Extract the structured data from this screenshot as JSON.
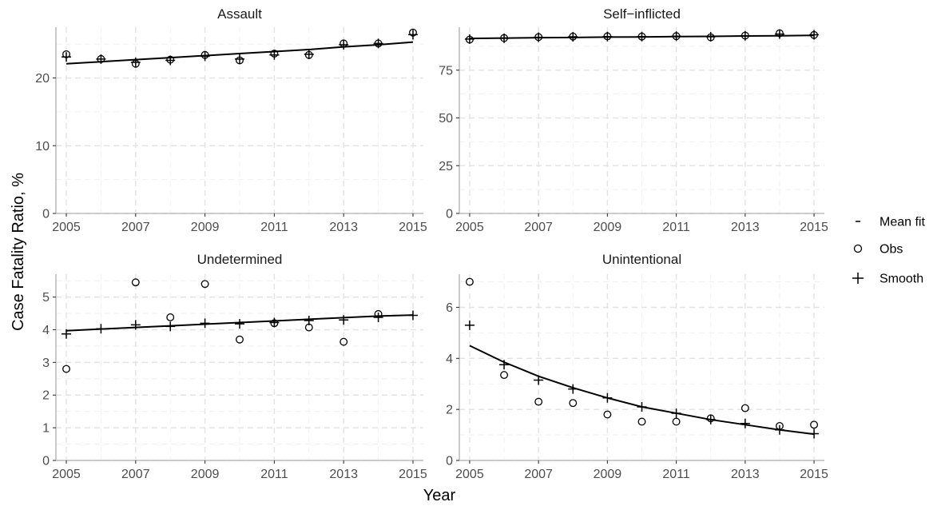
{
  "chart_data": {
    "type": "scatter",
    "xlabel": "Year",
    "ylabel": "Case Fatality Ratio, %",
    "grid": true,
    "legend_placement": "right",
    "legend": [
      {
        "key": "mean_fit",
        "label": "Mean fit",
        "glyph": "-"
      },
      {
        "key": "obs",
        "label": "Obs",
        "glyph": "o"
      },
      {
        "key": "smooth",
        "label": "Smooth",
        "glyph": "+"
      }
    ],
    "panels": [
      {
        "title": "Assault",
        "xlim": [
          2004.7,
          2015.3
        ],
        "ylim": [
          0,
          27.5
        ],
        "x_ticks": [
          2005,
          2007,
          2009,
          2011,
          2013,
          2015
        ],
        "y_ticks": [
          0,
          10,
          20
        ],
        "years": [
          2005,
          2006,
          2007,
          2008,
          2009,
          2010,
          2011,
          2012,
          2013,
          2014,
          2015
        ],
        "obs": [
          23.5,
          22.8,
          22.1,
          22.7,
          23.4,
          22.6,
          23.6,
          23.4,
          25.1,
          25.1,
          26.7
        ],
        "smooth": [
          23.1,
          22.8,
          22.3,
          22.6,
          23.2,
          22.8,
          23.4,
          23.5,
          24.9,
          25.1,
          26.4
        ],
        "mean_fit": [
          22.1,
          22.4,
          22.7,
          23.0,
          23.3,
          23.6,
          23.9,
          24.2,
          24.6,
          24.9,
          25.3
        ]
      },
      {
        "title": "Self−inflicted",
        "xlim": [
          2004.7,
          2015.3
        ],
        "ylim": [
          0,
          97.5
        ],
        "x_ticks": [
          2005,
          2007,
          2009,
          2011,
          2013,
          2015
        ],
        "y_ticks": [
          0,
          25,
          50,
          75
        ],
        "years": [
          2005,
          2006,
          2007,
          2008,
          2009,
          2010,
          2011,
          2012,
          2013,
          2014,
          2015
        ],
        "obs": [
          91.0,
          91.8,
          92.3,
          92.6,
          92.7,
          92.6,
          92.8,
          92.2,
          93.1,
          94.3,
          93.4
        ],
        "smooth": [
          91.3,
          91.7,
          92.2,
          92.5,
          92.6,
          92.6,
          92.8,
          92.5,
          93.0,
          93.9,
          93.5
        ],
        "mean_fit": [
          91.6,
          91.8,
          92.0,
          92.1,
          92.3,
          92.4,
          92.6,
          92.7,
          92.9,
          93.0,
          93.2
        ]
      },
      {
        "title": "Undetermined",
        "xlim": [
          2004.7,
          2015.3
        ],
        "ylim": [
          0,
          5.7
        ],
        "x_ticks": [
          2005,
          2007,
          2009,
          2011,
          2013,
          2015
        ],
        "y_ticks": [
          0,
          1,
          2,
          3,
          4,
          5
        ],
        "years": [
          2005,
          2006,
          2007,
          2008,
          2009,
          2010,
          2011,
          2012,
          2013,
          2014,
          2015
        ],
        "obs": [
          2.8,
          null,
          5.45,
          4.38,
          5.4,
          3.7,
          4.2,
          4.07,
          3.63,
          4.48,
          null
        ],
        "smooth": [
          3.87,
          4.03,
          4.15,
          4.1,
          4.2,
          4.18,
          4.22,
          4.28,
          4.3,
          4.38,
          4.44
        ],
        "mean_fit": [
          3.97,
          4.02,
          4.07,
          4.12,
          4.17,
          4.22,
          4.27,
          4.32,
          4.37,
          4.42,
          4.45
        ]
      },
      {
        "title": "Unintentional",
        "xlim": [
          2004.7,
          2015.3
        ],
        "ylim": [
          0,
          7.3
        ],
        "x_ticks": [
          2005,
          2007,
          2009,
          2011,
          2013,
          2015
        ],
        "y_ticks": [
          0,
          2,
          4,
          6
        ],
        "years": [
          2005,
          2006,
          2007,
          2008,
          2009,
          2010,
          2011,
          2012,
          2013,
          2014,
          2015
        ],
        "obs": [
          7.0,
          3.35,
          2.3,
          2.25,
          1.8,
          1.52,
          1.52,
          1.65,
          2.05,
          1.35,
          1.4
        ],
        "smooth": [
          5.3,
          3.75,
          3.15,
          2.8,
          2.45,
          2.1,
          1.85,
          1.6,
          1.45,
          1.2,
          1.05
        ],
        "mean_fit": [
          4.5,
          3.85,
          3.3,
          2.85,
          2.45,
          2.1,
          1.85,
          1.6,
          1.4,
          1.2,
          1.03
        ]
      }
    ]
  }
}
